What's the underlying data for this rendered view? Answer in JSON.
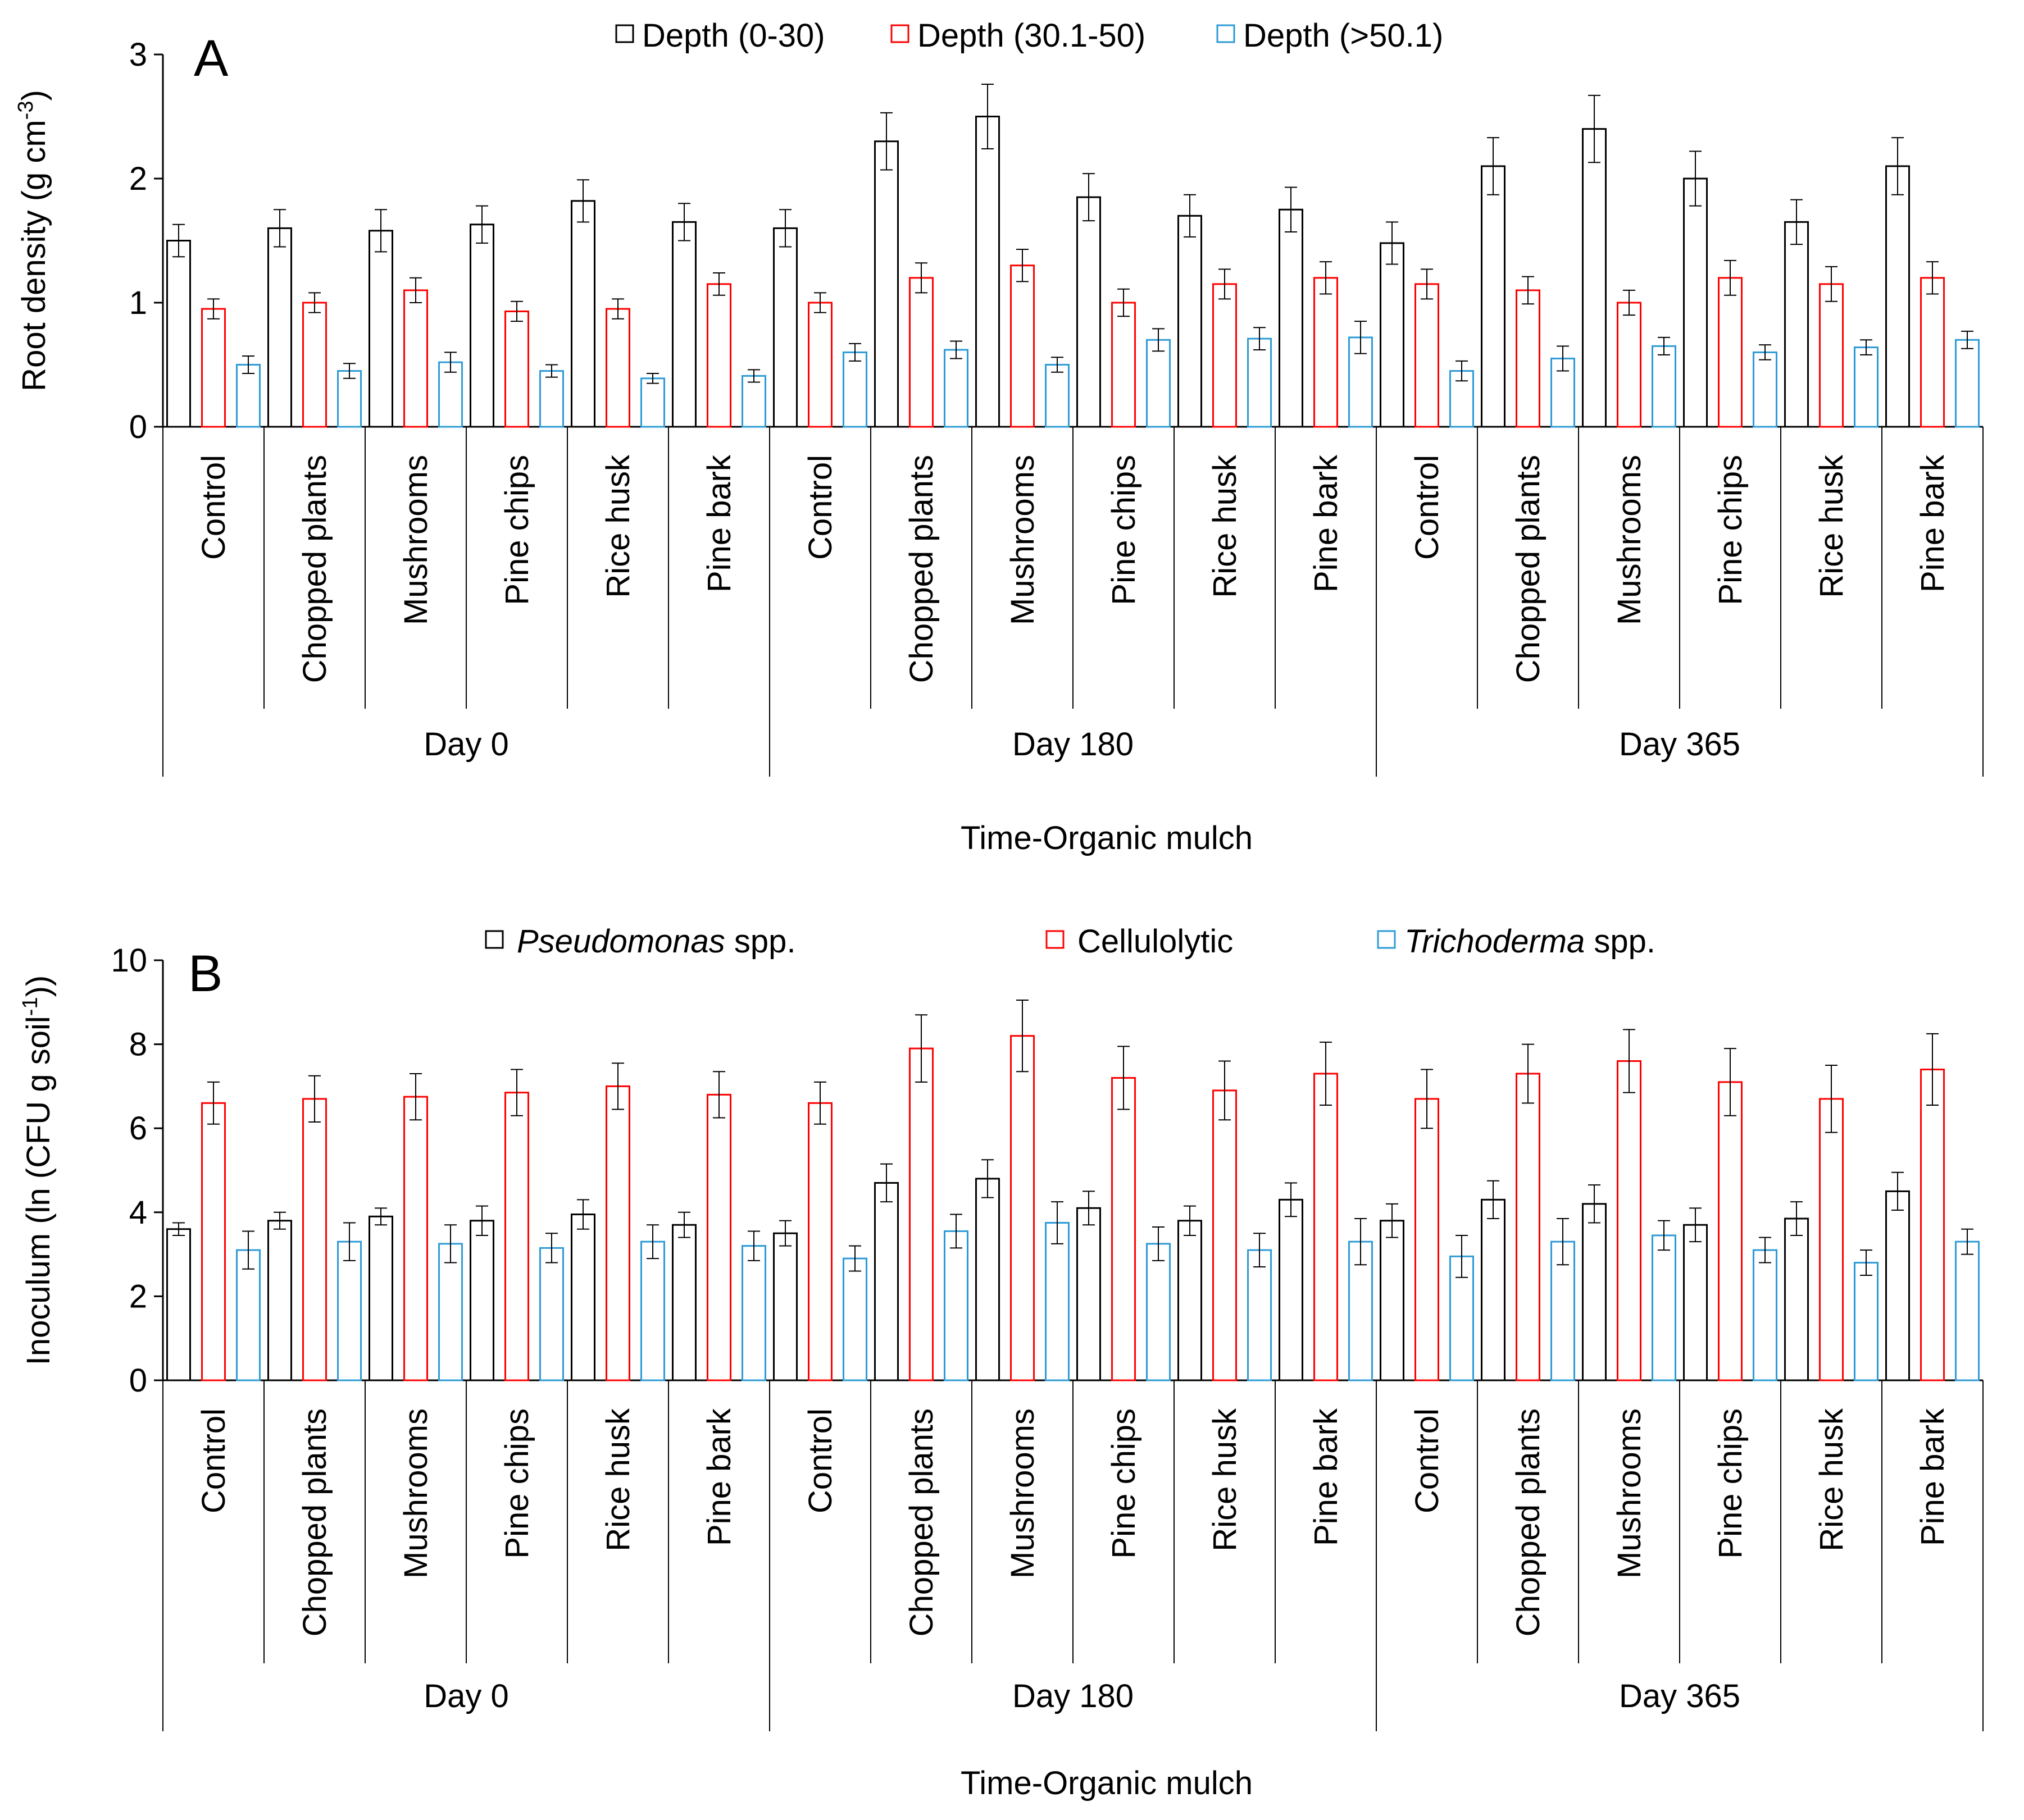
{
  "colors": {
    "black": "#000000",
    "red": "#ff0000",
    "blue": "#2e9bd6"
  },
  "chart_data": [
    {
      "type": "bar",
      "panel_label": "A",
      "ylabel": "Root density (g cm-3)",
      "ylabel_main": "Root density (g cm",
      "ylabel_sup": "-3",
      "ylabel_end": ")",
      "xlabel": "Time-Organic mulch",
      "ylim": [
        0,
        3
      ],
      "yticks": [
        "0",
        "1",
        "2",
        "3"
      ],
      "groups": [
        "Day 0",
        "Day 180",
        "Day 365"
      ],
      "categories": [
        "Control",
        "Chopped plants",
        "Mushrooms",
        "Pine chips",
        "Rice husk",
        "Pine bark",
        "Control",
        "Chopped plants",
        "Mushrooms",
        "Pine chips",
        "Rice husk",
        "Pine bark",
        "Control",
        "Chopped plants",
        "Mushrooms",
        "Pine chips",
        "Rice husk",
        "Pine bark"
      ],
      "legend": [
        {
          "text": "Depth (0-30)"
        },
        {
          "text": "Depth (30.1-50)"
        },
        {
          "text": "Depth (>50.1)"
        }
      ],
      "series": [
        {
          "name": "Depth (0-30)",
          "color": "#000000",
          "values": [
            1.5,
            1.6,
            1.58,
            1.63,
            1.82,
            1.65,
            1.6,
            2.3,
            2.5,
            1.85,
            1.7,
            1.75,
            1.48,
            2.1,
            2.4,
            2.0,
            1.65,
            2.1
          ],
          "errors": [
            0.13,
            0.15,
            0.17,
            0.15,
            0.17,
            0.15,
            0.15,
            0.23,
            0.26,
            0.19,
            0.17,
            0.18,
            0.17,
            0.23,
            0.27,
            0.22,
            0.18,
            0.23
          ]
        },
        {
          "name": "Depth (30.1-50)",
          "color": "#ff0000",
          "values": [
            0.95,
            1.0,
            1.1,
            0.93,
            0.95,
            1.15,
            1.0,
            1.2,
            1.3,
            1.0,
            1.15,
            1.2,
            1.15,
            1.1,
            1.0,
            1.2,
            1.15,
            1.2
          ],
          "errors": [
            0.08,
            0.08,
            0.1,
            0.08,
            0.08,
            0.09,
            0.08,
            0.12,
            0.13,
            0.11,
            0.12,
            0.13,
            0.12,
            0.11,
            0.1,
            0.14,
            0.14,
            0.13
          ]
        },
        {
          "name": "Depth (>50.1)",
          "color": "#2e9bd6",
          "values": [
            0.5,
            0.45,
            0.52,
            0.45,
            0.39,
            0.41,
            0.6,
            0.62,
            0.5,
            0.7,
            0.71,
            0.72,
            0.45,
            0.55,
            0.65,
            0.6,
            0.64,
            0.7
          ],
          "errors": [
            0.07,
            0.06,
            0.08,
            0.05,
            0.04,
            0.05,
            0.07,
            0.07,
            0.06,
            0.09,
            0.09,
            0.13,
            0.08,
            0.1,
            0.07,
            0.06,
            0.06,
            0.07
          ]
        }
      ]
    },
    {
      "type": "bar",
      "panel_label": "B",
      "ylabel": "Inoculum (ln (CFU g soil-1))",
      "ylabel_main": "Inoculum (ln (CFU g soil",
      "ylabel_sup": "-1",
      "ylabel_end": "))",
      "xlabel": "Time-Organic mulch",
      "ylim": [
        0,
        10
      ],
      "yticks": [
        "0",
        "2",
        "4",
        "6",
        "8",
        "10"
      ],
      "groups": [
        "Day 0",
        "Day 180",
        "Day 365"
      ],
      "categories": [
        "Control",
        "Chopped plants",
        "Mushrooms",
        "Pine chips",
        "Rice husk",
        "Pine bark",
        "Control",
        "Chopped plants",
        "Mushrooms",
        "Pine chips",
        "Rice husk",
        "Pine bark",
        "Control",
        "Chopped plants",
        "Mushrooms",
        "Pine chips",
        "Rice husk",
        "Pine bark"
      ],
      "legend": [
        {
          "text": "Pseudomonas spp.",
          "italic": "Pseudomonas",
          "rest": " spp."
        },
        {
          "text": "Cellulolytic",
          "italic": "",
          "rest": "Cellulolytic"
        },
        {
          "text": "Trichoderma spp.",
          "italic": "Trichoderma",
          "rest": " spp."
        }
      ],
      "series": [
        {
          "name": "Pseudomonas spp.",
          "color": "#000000",
          "values": [
            3.6,
            3.8,
            3.9,
            3.8,
            3.95,
            3.7,
            3.5,
            4.7,
            4.8,
            4.1,
            3.8,
            4.3,
            3.8,
            4.3,
            4.2,
            3.7,
            3.85,
            4.5
          ],
          "errors": [
            0.15,
            0.2,
            0.2,
            0.35,
            0.35,
            0.3,
            0.3,
            0.45,
            0.45,
            0.4,
            0.35,
            0.4,
            0.4,
            0.45,
            0.45,
            0.4,
            0.4,
            0.45
          ]
        },
        {
          "name": "Cellulolytic",
          "color": "#ff0000",
          "values": [
            6.6,
            6.7,
            6.75,
            6.85,
            7.0,
            6.8,
            6.6,
            7.9,
            8.2,
            7.2,
            6.9,
            7.3,
            6.7,
            7.3,
            7.6,
            7.1,
            6.7,
            7.4
          ],
          "errors": [
            0.5,
            0.55,
            0.55,
            0.55,
            0.55,
            0.55,
            0.5,
            0.8,
            0.85,
            0.75,
            0.7,
            0.75,
            0.7,
            0.7,
            0.75,
            0.8,
            0.8,
            0.85
          ]
        },
        {
          "name": "Trichoderma spp.",
          "color": "#2e9bd6",
          "values": [
            3.1,
            3.3,
            3.25,
            3.15,
            3.3,
            3.2,
            2.9,
            3.55,
            3.75,
            3.25,
            3.1,
            3.3,
            2.95,
            3.3,
            3.45,
            3.1,
            2.8,
            3.3
          ],
          "errors": [
            0.45,
            0.45,
            0.45,
            0.35,
            0.4,
            0.35,
            0.3,
            0.4,
            0.5,
            0.4,
            0.4,
            0.55,
            0.5,
            0.55,
            0.35,
            0.3,
            0.3,
            0.3
          ]
        }
      ]
    }
  ]
}
